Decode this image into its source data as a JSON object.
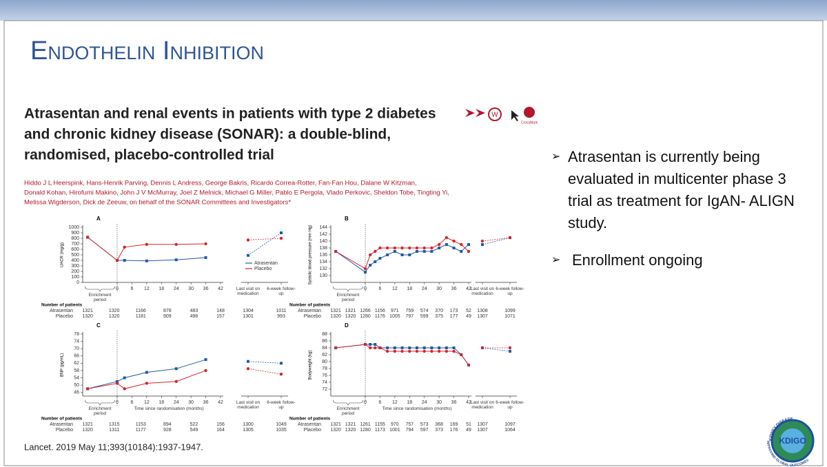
{
  "slide": {
    "title": "Endothelin Inhibition",
    "bullets": [
      "Atrasentan is currently being evaluated in multicenter phase 3 trial as treatment for IgAN- ALIGN study.",
      "Enrollment ongoing"
    ],
    "citation": "Lancet. 2019 May 11;393(10184):1937-1947.",
    "logo": {
      "name": "KDIGO",
      "top": "KIDNEY DISEASE",
      "bottom": "IMPROVING GLOBAL OUTCOMES"
    }
  },
  "paper": {
    "title_lines": [
      "Atrasentan and renal events in patients with type 2 diabetes",
      "and chronic kidney disease (SONAR): a double-blind,",
      "randomised, placebo-controlled trial"
    ],
    "crossmark": "CrossMark",
    "author_lines": [
      "Hiddo J L Heerspink, Hans-Henrik Parving, Dennis L Andress, George Bakris, Ricardo Correa-Rotter, Fan-Fan Hou, Dalane W Kitzman,",
      "Donald Kohan, Hirofumi Makino, John J V McMurray, Joel Z Melnick, Michael G Miller, Pablo E Pergola, Vlado Perkovic, Sheldon Tobe, Tingting Yi,",
      "Melissa Wigderson, Dick de Zeeuw, on behalf of the SONAR Committees and Investigators*"
    ]
  },
  "panels": [
    {
      "label": "A",
      "ylabel": "UACR (mg/g)",
      "ylim": [
        0,
        1000
      ],
      "yticks": [
        0,
        100,
        200,
        300,
        400,
        500,
        600,
        700,
        800,
        900,
        1000
      ],
      "xlim": [
        -14,
        42
      ],
      "xticks": [
        0,
        6,
        12,
        18,
        24,
        30,
        36,
        42
      ],
      "period": "Enrichment period",
      "followup_labels": [
        "Last visit on medication",
        "6-week follow-up"
      ],
      "legend": "lower right",
      "series": [
        {
          "name": "Atrasentan",
          "color": "#1f5aa6",
          "marker": "square",
          "x": [
            -12,
            0,
            3,
            12,
            24,
            36
          ],
          "values": [
            820,
            400,
            400,
            390,
            410,
            450
          ],
          "followup": [
            490,
            900
          ]
        },
        {
          "name": "Placebo",
          "color": "#d6232f",
          "marker": "circle",
          "x": [
            -12,
            0,
            3,
            12,
            24,
            36
          ],
          "values": [
            820,
            400,
            640,
            690,
            690,
            700
          ],
          "followup": [
            770,
            800
          ]
        }
      ],
      "patients": {
        "title": "Number of patients",
        "rows": [
          [
            1321,
            1320,
            1166,
            878,
            483,
            148,
            1304,
            1011
          ],
          [
            1320,
            1320,
            1181,
            909,
            498,
            157,
            1301,
            993
          ]
        ]
      }
    },
    {
      "label": "B",
      "ylabel": "Systolic blood pressure (mm Hg)",
      "ylim": [
        128,
        144
      ],
      "yticks": [
        130,
        132,
        134,
        136,
        138,
        140,
        142,
        144
      ],
      "xlim": [
        -14,
        42
      ],
      "xticks": [
        0,
        6,
        12,
        18,
        24,
        30,
        36,
        42
      ],
      "period": "Enrichment period",
      "followup_labels": [
        "Last visit on medication",
        "6-week follow-up"
      ],
      "series": [
        {
          "name": "Atrasentan",
          "color": "#1f5aa6",
          "marker": "square",
          "x": [
            -12,
            0,
            2,
            4,
            6,
            9,
            12,
            15,
            18,
            21,
            24,
            27,
            30,
            33,
            36,
            39,
            42
          ],
          "values": [
            137,
            131,
            133,
            134,
            135,
            136,
            137,
            136,
            136,
            137,
            137,
            137,
            138,
            139,
            138,
            137,
            139
          ],
          "followup": [
            139,
            141
          ]
        },
        {
          "name": "Placebo",
          "color": "#d6232f",
          "marker": "circle",
          "x": [
            -12,
            0,
            2,
            4,
            6,
            9,
            12,
            15,
            18,
            21,
            24,
            27,
            30,
            33,
            36,
            39,
            42
          ],
          "values": [
            137,
            132,
            136,
            137,
            138,
            138,
            138,
            138,
            138,
            138,
            138,
            138,
            139,
            141,
            140,
            139,
            137
          ],
          "followup": [
            140,
            141
          ]
        }
      ],
      "patients": {
        "title": "Number of patients",
        "rows": [
          [
            1321,
            1321,
            1266,
            1156,
            971,
            759,
            574,
            370,
            173,
            52,
            1308,
            1099
          ],
          [
            1320,
            1320,
            1280,
            1176,
            1005,
            797,
            599,
            375,
            177,
            49,
            1307,
            1071
          ]
        ]
      }
    },
    {
      "label": "C",
      "ylabel": "BNP (pg/mL)",
      "ylim": [
        44,
        78
      ],
      "yticks": [
        46,
        50,
        54,
        58,
        62,
        66,
        70,
        74,
        78
      ],
      "xlim": [
        -14,
        42
      ],
      "xticks": [
        0,
        6,
        12,
        18,
        24,
        30,
        36,
        42
      ],
      "period": "Enrichment period",
      "xlabel": "Time since randomisation (months)",
      "followup_labels": [
        "Last visit on medication",
        "6-week follow-up"
      ],
      "series": [
        {
          "name": "Atrasentan",
          "color": "#1f5aa6",
          "marker": "square",
          "x": [
            -12,
            0,
            3,
            12,
            24,
            36
          ],
          "values": [
            48,
            52,
            54,
            57,
            59,
            64
          ],
          "followup": [
            63,
            62
          ]
        },
        {
          "name": "Placebo",
          "color": "#d6232f",
          "marker": "circle",
          "x": [
            -12,
            0,
            3,
            12,
            24,
            36
          ],
          "values": [
            48,
            51,
            48,
            51,
            52,
            58
          ],
          "followup": [
            59,
            56
          ]
        }
      ],
      "patients": {
        "title": "Number of patients",
        "rows": [
          [
            1321,
            1315,
            1153,
            894,
            522,
            156,
            1300,
            1049
          ],
          [
            1320,
            1311,
            1177,
            928,
            549,
            164,
            1305,
            1035
          ]
        ]
      }
    },
    {
      "label": "D",
      "ylabel": "Bodyweight (kg)",
      "ylim": [
        70,
        88
      ],
      "yticks": [
        72,
        74,
        76,
        78,
        80,
        82,
        84,
        86,
        88
      ],
      "xlim": [
        -14,
        42
      ],
      "xticks": [
        0,
        6,
        12,
        18,
        24,
        30,
        36,
        42
      ],
      "period": "Enrichment period",
      "xlabel": "Time since randomisation (months)",
      "followup_labels": [
        "Last visit on medication",
        "6-week follow-up"
      ],
      "series": [
        {
          "name": "Atrasentan",
          "color": "#1f5aa6",
          "marker": "square",
          "x": [
            -12,
            0,
            2,
            4,
            6,
            9,
            12,
            15,
            18,
            21,
            24,
            27,
            30,
            33,
            36,
            39,
            42
          ],
          "values": [
            84,
            85,
            85,
            85,
            84,
            84,
            84,
            84,
            84,
            84,
            84,
            84,
            84,
            84,
            84,
            82,
            79
          ],
          "followup": [
            84,
            83
          ]
        },
        {
          "name": "Placebo",
          "color": "#d6232f",
          "marker": "circle",
          "x": [
            -12,
            0,
            2,
            4,
            6,
            9,
            12,
            15,
            18,
            21,
            24,
            27,
            30,
            33,
            36,
            39,
            42
          ],
          "values": [
            84,
            85,
            84,
            84,
            84,
            83,
            83,
            83,
            83,
            83,
            83,
            83,
            83,
            83,
            83,
            82,
            79
          ],
          "followup": [
            84,
            84
          ]
        }
      ],
      "patients": {
        "title": "Number of patients",
        "rows": [
          [
            1321,
            1321,
            1261,
            1155,
            970,
            757,
            573,
            368,
            169,
            51,
            1307,
            1097
          ],
          [
            1320,
            1320,
            1280,
            1173,
            1001,
            794,
            597,
            373,
            176,
            49,
            1307,
            1064
          ]
        ]
      }
    }
  ]
}
